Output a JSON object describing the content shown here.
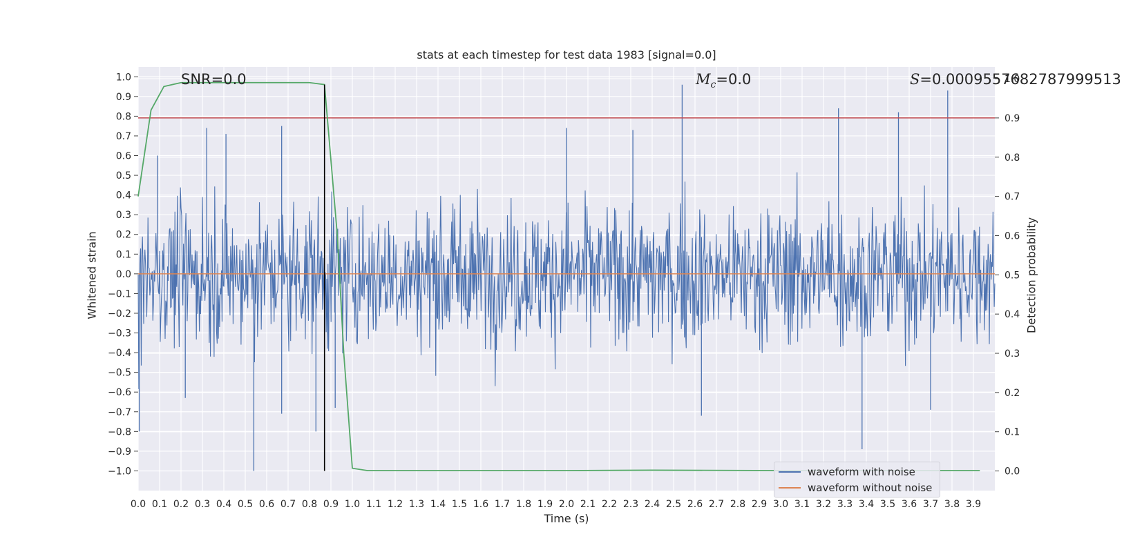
{
  "chart_data": {
    "type": "line",
    "title": "stats at each timestep for test data 1983 [signal=0.0]",
    "xlabel": "Time (s)",
    "ylabel": "Whitened strain",
    "y2label": "Detection probability",
    "xlim": [
      0.0,
      4.0
    ],
    "ylim": [
      -1.1,
      1.05
    ],
    "y2lim": [
      -0.05,
      1.03
    ],
    "xticks": [
      "0.0",
      "0.1",
      "0.2",
      "0.3",
      "0.4",
      "0.5",
      "0.6",
      "0.7",
      "0.8",
      "0.9",
      "1.0",
      "1.1",
      "1.2",
      "1.3",
      "1.4",
      "1.5",
      "1.6",
      "1.7",
      "1.8",
      "1.9",
      "2.0",
      "2.1",
      "2.2",
      "2.3",
      "2.4",
      "2.5",
      "2.6",
      "2.7",
      "2.8",
      "2.9",
      "3.0",
      "3.1",
      "3.2",
      "3.3",
      "3.4",
      "3.5",
      "3.6",
      "3.7",
      "3.8",
      "3.9"
    ],
    "yticks": [
      "1.0",
      "0.9",
      "0.8",
      "0.7",
      "0.6",
      "0.5",
      "0.4",
      "0.3",
      "0.2",
      "0.1",
      "0.0",
      "−0.1",
      "−0.2",
      "−0.3",
      "−0.4",
      "−0.5",
      "−0.6",
      "−0.7",
      "−0.8",
      "−0.9",
      "−1.0"
    ],
    "y2ticks": [
      "1.0",
      "0.9",
      "0.8",
      "0.7",
      "0.6",
      "0.5",
      "0.4",
      "0.3",
      "0.2",
      "0.1",
      "0.0"
    ],
    "grid": true,
    "legend_position": "lower-right",
    "annotations": {
      "snr": "SNR=0.0",
      "mc_symbol": "M",
      "mc_sub": "c",
      "mc_value": "=0.0",
      "s_symbol": "S",
      "s_value": "=0.0009557682787999513"
    },
    "series": [
      {
        "name": "waveform with noise",
        "color": "#4c72b0",
        "axis": "left",
        "description_kind": "dense noise",
        "typical_amplitude": 0.28,
        "spikes": [
          {
            "x": 0.005,
            "y": -0.8
          },
          {
            "x": 0.09,
            "y": 0.6
          },
          {
            "x": 0.22,
            "y": -0.63
          },
          {
            "x": 0.32,
            "y": 0.74
          },
          {
            "x": 0.41,
            "y": 0.71
          },
          {
            "x": 0.54,
            "y": -1.0
          },
          {
            "x": 0.67,
            "y": 0.75
          },
          {
            "x": 0.67,
            "y": -0.71
          },
          {
            "x": 0.83,
            "y": -0.8
          },
          {
            "x": 0.92,
            "y": -0.68
          },
          {
            "x": 2.0,
            "y": 0.74
          },
          {
            "x": 2.31,
            "y": 0.73
          },
          {
            "x": 2.54,
            "y": 0.96
          },
          {
            "x": 2.63,
            "y": -0.72
          },
          {
            "x": 3.27,
            "y": 0.84
          },
          {
            "x": 3.38,
            "y": -0.89
          },
          {
            "x": 3.55,
            "y": 0.82
          },
          {
            "x": 3.78,
            "y": 0.93
          },
          {
            "x": 3.7,
            "y": -0.69
          }
        ]
      },
      {
        "name": "waveform without noise",
        "color": "#dd8452",
        "axis": "left",
        "x": [
          0.0,
          4.0
        ],
        "y": [
          0.0,
          0.0
        ]
      },
      {
        "name": "detection probability",
        "color": "#55a868",
        "axis": "right",
        "x": [
          0.0,
          0.06,
          0.12,
          0.2,
          0.3,
          0.4,
          0.5,
          0.6,
          0.7,
          0.8,
          0.87,
          0.93,
          0.96,
          1.0,
          1.07,
          1.2,
          1.5,
          2.0,
          2.4,
          3.0,
          3.5,
          3.93
        ],
        "y": [
          0.7,
          0.92,
          0.98,
          0.99,
          0.99,
          0.99,
          0.99,
          0.99,
          0.99,
          0.99,
          0.985,
          0.6,
          0.3,
          0.007,
          0.001,
          0.001,
          0.001,
          0.001,
          0.002,
          0.001,
          0.001,
          0.001
        ]
      }
    ],
    "threshold": {
      "axis": "right",
      "y": 0.9,
      "color": "#c44e52"
    },
    "vline": {
      "x": 0.87,
      "color": "#000000",
      "ymin": -1.0,
      "ymax": 0.985
    }
  }
}
